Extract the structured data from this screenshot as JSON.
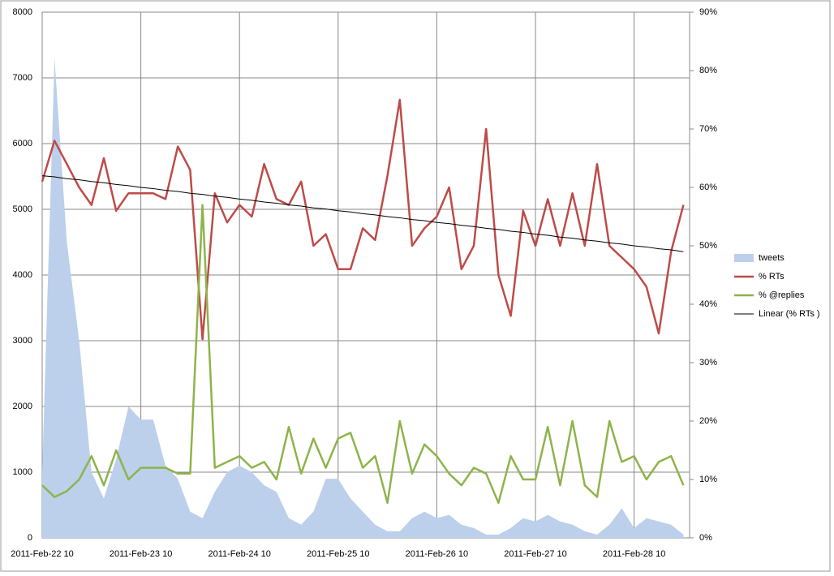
{
  "chart_data": {
    "type": "line",
    "categories": [
      "2011-Feb-22 10",
      null,
      null,
      null,
      null,
      null,
      null,
      null,
      "2011-Feb-23 10",
      null,
      null,
      null,
      null,
      null,
      null,
      null,
      "2011-Feb-24 10",
      null,
      null,
      null,
      null,
      null,
      null,
      null,
      "2011-Feb-25 10",
      null,
      null,
      null,
      null,
      null,
      null,
      null,
      "2011-Feb-26 10",
      null,
      null,
      null,
      null,
      null,
      null,
      null,
      "2011-Feb-27 10",
      null,
      null,
      null,
      null,
      null,
      null,
      null,
      "2011-Feb-28 10",
      null,
      null,
      null,
      null
    ],
    "ylim": [
      0,
      8000
    ],
    "yticks": [
      0,
      1000,
      2000,
      3000,
      4000,
      5000,
      6000,
      7000,
      8000
    ],
    "y2lim": [
      0,
      90
    ],
    "y2ticks": [
      {
        "value": 0,
        "label": "0%"
      },
      {
        "value": 10,
        "label": "10%"
      },
      {
        "value": 20,
        "label": "20%"
      },
      {
        "value": 30,
        "label": "30%"
      },
      {
        "value": 40,
        "label": "40%"
      },
      {
        "value": 50,
        "label": "50%"
      },
      {
        "value": 60,
        "label": "60%"
      },
      {
        "value": 70,
        "label": "70%"
      },
      {
        "value": 80,
        "label": "80%"
      },
      {
        "value": 90,
        "label": "90%"
      }
    ],
    "grid": true,
    "legend": "right",
    "series": [
      {
        "name": "tweets",
        "type": "area",
        "color": "#bcd0ec",
        "values": [
          1000,
          7300,
          4500,
          3000,
          1000,
          600,
          1200,
          2000,
          1800,
          1800,
          1100,
          900,
          400,
          300,
          700,
          1000,
          1100,
          1000,
          800,
          700,
          300,
          200,
          400,
          900,
          900,
          600,
          400,
          200,
          100,
          100,
          300,
          400,
          300,
          350,
          200,
          150,
          50,
          50,
          150,
          300,
          250,
          350,
          250,
          200,
          100,
          50,
          200,
          450,
          150,
          300,
          250,
          200,
          50
        ]
      },
      {
        "name": "% RTs",
        "type": "line",
        "axis": "y2",
        "color": "#be4b48",
        "values": [
          61,
          68,
          64,
          60,
          57,
          65,
          56,
          59,
          59,
          59,
          58,
          67,
          63,
          34,
          59,
          54,
          57,
          55,
          64,
          58,
          57,
          61,
          50,
          52,
          46,
          46,
          53,
          51,
          62,
          75,
          50,
          53,
          55,
          60,
          46,
          50,
          70,
          45,
          38,
          56,
          50,
          58,
          50,
          59,
          50,
          64,
          50,
          48,
          46,
          43,
          35,
          49,
          57
        ]
      },
      {
        "name": "% @replies",
        "type": "line",
        "axis": "y2",
        "color": "#8db44a",
        "values": [
          9,
          7,
          8,
          10,
          14,
          9,
          15,
          10,
          12,
          12,
          12,
          11,
          11,
          57,
          12,
          13,
          14,
          12,
          13,
          10,
          19,
          11,
          17,
          12,
          17,
          18,
          12,
          14,
          6,
          20,
          11,
          16,
          14,
          11,
          9,
          12,
          11,
          6,
          14,
          10,
          10,
          19,
          9,
          20,
          9,
          7,
          20,
          13,
          14,
          10,
          13,
          14,
          9
        ]
      },
      {
        "name": "Linear (% RTs )",
        "type": "line",
        "axis": "y2",
        "color": "#000000",
        "thin": true,
        "values": [
          62.0,
          61.8,
          61.5,
          61.3,
          61.0,
          60.8,
          60.5,
          60.3,
          60.0,
          59.8,
          59.5,
          59.3,
          59.0,
          58.8,
          58.5,
          58.3,
          58.0,
          57.8,
          57.5,
          57.3,
          57.0,
          56.8,
          56.5,
          56.3,
          56.0,
          55.8,
          55.5,
          55.3,
          55.0,
          54.8,
          54.5,
          54.3,
          54.0,
          53.8,
          53.5,
          53.3,
          53.0,
          52.8,
          52.5,
          52.3,
          52.0,
          51.8,
          51.5,
          51.3,
          51.0,
          50.8,
          50.5,
          50.3,
          50.0,
          49.8,
          49.5,
          49.3,
          49.0
        ]
      }
    ]
  }
}
